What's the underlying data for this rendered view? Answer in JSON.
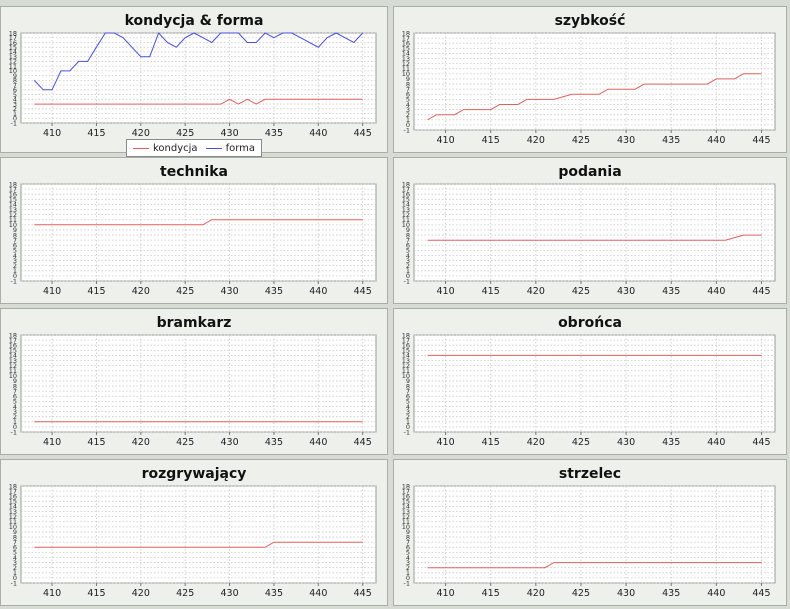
{
  "chart_data": [
    {
      "type": "line",
      "title": "kondycja & forma",
      "ylim": [
        -1,
        18
      ],
      "xlim": [
        406.5,
        446.5
      ],
      "xticks": [
        410,
        415,
        420,
        425,
        430,
        435,
        440,
        445
      ],
      "grid": true,
      "legend": "bottom",
      "series": [
        {
          "name": "kondycja",
          "color": "#e06060",
          "x": [
            408,
            429,
            430,
            431,
            432,
            433,
            434,
            445
          ],
          "y": [
            3,
            3,
            4,
            3,
            4,
            3,
            4,
            4
          ]
        },
        {
          "name": "forma",
          "color": "#4a50d8",
          "x": [
            408,
            409,
            410,
            411,
            412,
            413,
            414,
            415,
            416,
            417,
            418,
            419,
            420,
            421,
            422,
            423,
            424,
            425,
            426,
            427,
            428,
            429,
            430,
            431,
            432,
            433,
            434,
            435,
            436,
            437,
            438,
            439,
            440,
            441,
            442,
            443,
            444,
            445
          ],
          "y": [
            8,
            6,
            6,
            10,
            10,
            12,
            12,
            15,
            18,
            18,
            17,
            15,
            13,
            13,
            18,
            16,
            15,
            17,
            18,
            17,
            16,
            18,
            18,
            18,
            16,
            16,
            18,
            17,
            18,
            18,
            17,
            16,
            15,
            17,
            18,
            17,
            16,
            18
          ]
        }
      ]
    },
    {
      "type": "line",
      "title": "szybkość",
      "ylim": [
        -1,
        18
      ],
      "xlim": [
        406.5,
        446.5
      ],
      "xticks": [
        410,
        415,
        420,
        425,
        430,
        435,
        440,
        445
      ],
      "grid": true,
      "series": [
        {
          "color": "#e06060",
          "x": [
            408,
            409,
            411,
            412,
            415,
            416,
            418,
            419,
            422,
            424,
            425,
            427,
            428,
            431,
            432,
            437,
            438,
            439,
            440,
            441,
            442,
            443,
            444,
            445
          ],
          "y": [
            1,
            2,
            2,
            3,
            3,
            4,
            4,
            5,
            5,
            6,
            6,
            6,
            7,
            7,
            8,
            8,
            8,
            8,
            9,
            9,
            9,
            10,
            10,
            10
          ]
        }
      ]
    },
    {
      "type": "line",
      "title": "technika",
      "ylim": [
        -1,
        18
      ],
      "xlim": [
        406.5,
        446.5
      ],
      "xticks": [
        410,
        415,
        420,
        425,
        430,
        435,
        440,
        445
      ],
      "grid": true,
      "series": [
        {
          "color": "#e06060",
          "x": [
            408,
            427,
            428,
            445
          ],
          "y": [
            10,
            10,
            11,
            11
          ]
        }
      ]
    },
    {
      "type": "line",
      "title": "podania",
      "ylim": [
        -1,
        18
      ],
      "xlim": [
        406.5,
        446.5
      ],
      "xticks": [
        410,
        415,
        420,
        425,
        430,
        435,
        440,
        445
      ],
      "grid": true,
      "series": [
        {
          "color": "#e06060",
          "x": [
            408,
            441,
            443,
            445
          ],
          "y": [
            7,
            7,
            8,
            8
          ]
        }
      ]
    },
    {
      "type": "line",
      "title": "bramkarz",
      "ylim": [
        -1,
        18
      ],
      "xlim": [
        406.5,
        446.5
      ],
      "xticks": [
        410,
        415,
        420,
        425,
        430,
        435,
        440,
        445
      ],
      "grid": true,
      "series": [
        {
          "color": "#e06060",
          "x": [
            408,
            445
          ],
          "y": [
            1,
            1
          ]
        }
      ]
    },
    {
      "type": "line",
      "title": "obrońca",
      "ylim": [
        -1,
        18
      ],
      "xlim": [
        406.5,
        446.5
      ],
      "xticks": [
        410,
        415,
        420,
        425,
        430,
        435,
        440,
        445
      ],
      "grid": true,
      "series": [
        {
          "color": "#e06060",
          "x": [
            408,
            445
          ],
          "y": [
            14,
            14
          ]
        }
      ]
    },
    {
      "type": "line",
      "title": "rozgrywający",
      "ylim": [
        -1,
        18
      ],
      "xlim": [
        406.5,
        446.5
      ],
      "xticks": [
        410,
        415,
        420,
        425,
        430,
        435,
        440,
        445
      ],
      "grid": true,
      "series": [
        {
          "color": "#e06060",
          "x": [
            408,
            434,
            435,
            445
          ],
          "y": [
            6,
            6,
            7,
            7
          ]
        }
      ]
    },
    {
      "type": "line",
      "title": "strzelec",
      "ylim": [
        -1,
        18
      ],
      "xlim": [
        406.5,
        446.5
      ],
      "xticks": [
        410,
        415,
        420,
        425,
        430,
        435,
        440,
        445
      ],
      "grid": true,
      "series": [
        {
          "color": "#e06060",
          "x": [
            408,
            421,
            422,
            445
          ],
          "y": [
            2,
            2,
            3,
            3
          ]
        }
      ]
    }
  ]
}
